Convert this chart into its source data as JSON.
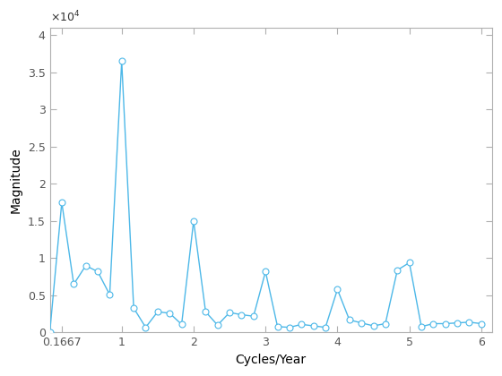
{
  "x": [
    0.0,
    0.1667,
    0.3333,
    0.5,
    0.6667,
    0.8333,
    1.0,
    1.1667,
    1.3333,
    1.5,
    1.6667,
    1.8333,
    2.0,
    2.1667,
    2.3333,
    2.5,
    2.6667,
    2.8333,
    3.0,
    3.1667,
    3.3333,
    3.5,
    3.6667,
    3.8333,
    4.0,
    4.1667,
    4.3333,
    4.5,
    4.6667,
    4.8333,
    5.0,
    5.1667,
    5.3333,
    5.5,
    5.6667,
    5.8333,
    6.0
  ],
  "y": [
    0,
    17500,
    6500,
    9000,
    8200,
    5100,
    36500,
    3300,
    700,
    2800,
    2600,
    1100,
    15000,
    2800,
    1000,
    2700,
    2400,
    2200,
    8200,
    800,
    700,
    1100,
    900,
    700,
    5800,
    1700,
    1300,
    900,
    1200,
    8400,
    9400,
    800,
    1200,
    1200,
    1300,
    1400,
    1200
  ],
  "line_color": "#4db8e8",
  "marker": "o",
  "marker_facecolor": "white",
  "marker_edgecolor": "#4db8e8",
  "marker_size": 5,
  "linewidth": 1.0,
  "xlabel": "Cycles/Year",
  "ylabel": "Magnitude",
  "xlim": [
    0.0,
    6.15
  ],
  "ylim": [
    0,
    41000
  ],
  "xticks": [
    0.1667,
    1,
    2,
    3,
    4,
    5,
    6
  ],
  "xticklabels": [
    "0.1667",
    "1",
    "2",
    "3",
    "4",
    "5",
    "6"
  ],
  "ytick_vals": [
    0,
    5000,
    10000,
    15000,
    20000,
    25000,
    30000,
    35000,
    40000
  ],
  "ytick_labels": [
    "0",
    "0.5",
    "1",
    "1.5",
    "2",
    "2.5",
    "3",
    "3.5",
    "4"
  ],
  "background_color": "#ffffff",
  "spine_color": "#b0b0b0",
  "tick_color": "#555555"
}
